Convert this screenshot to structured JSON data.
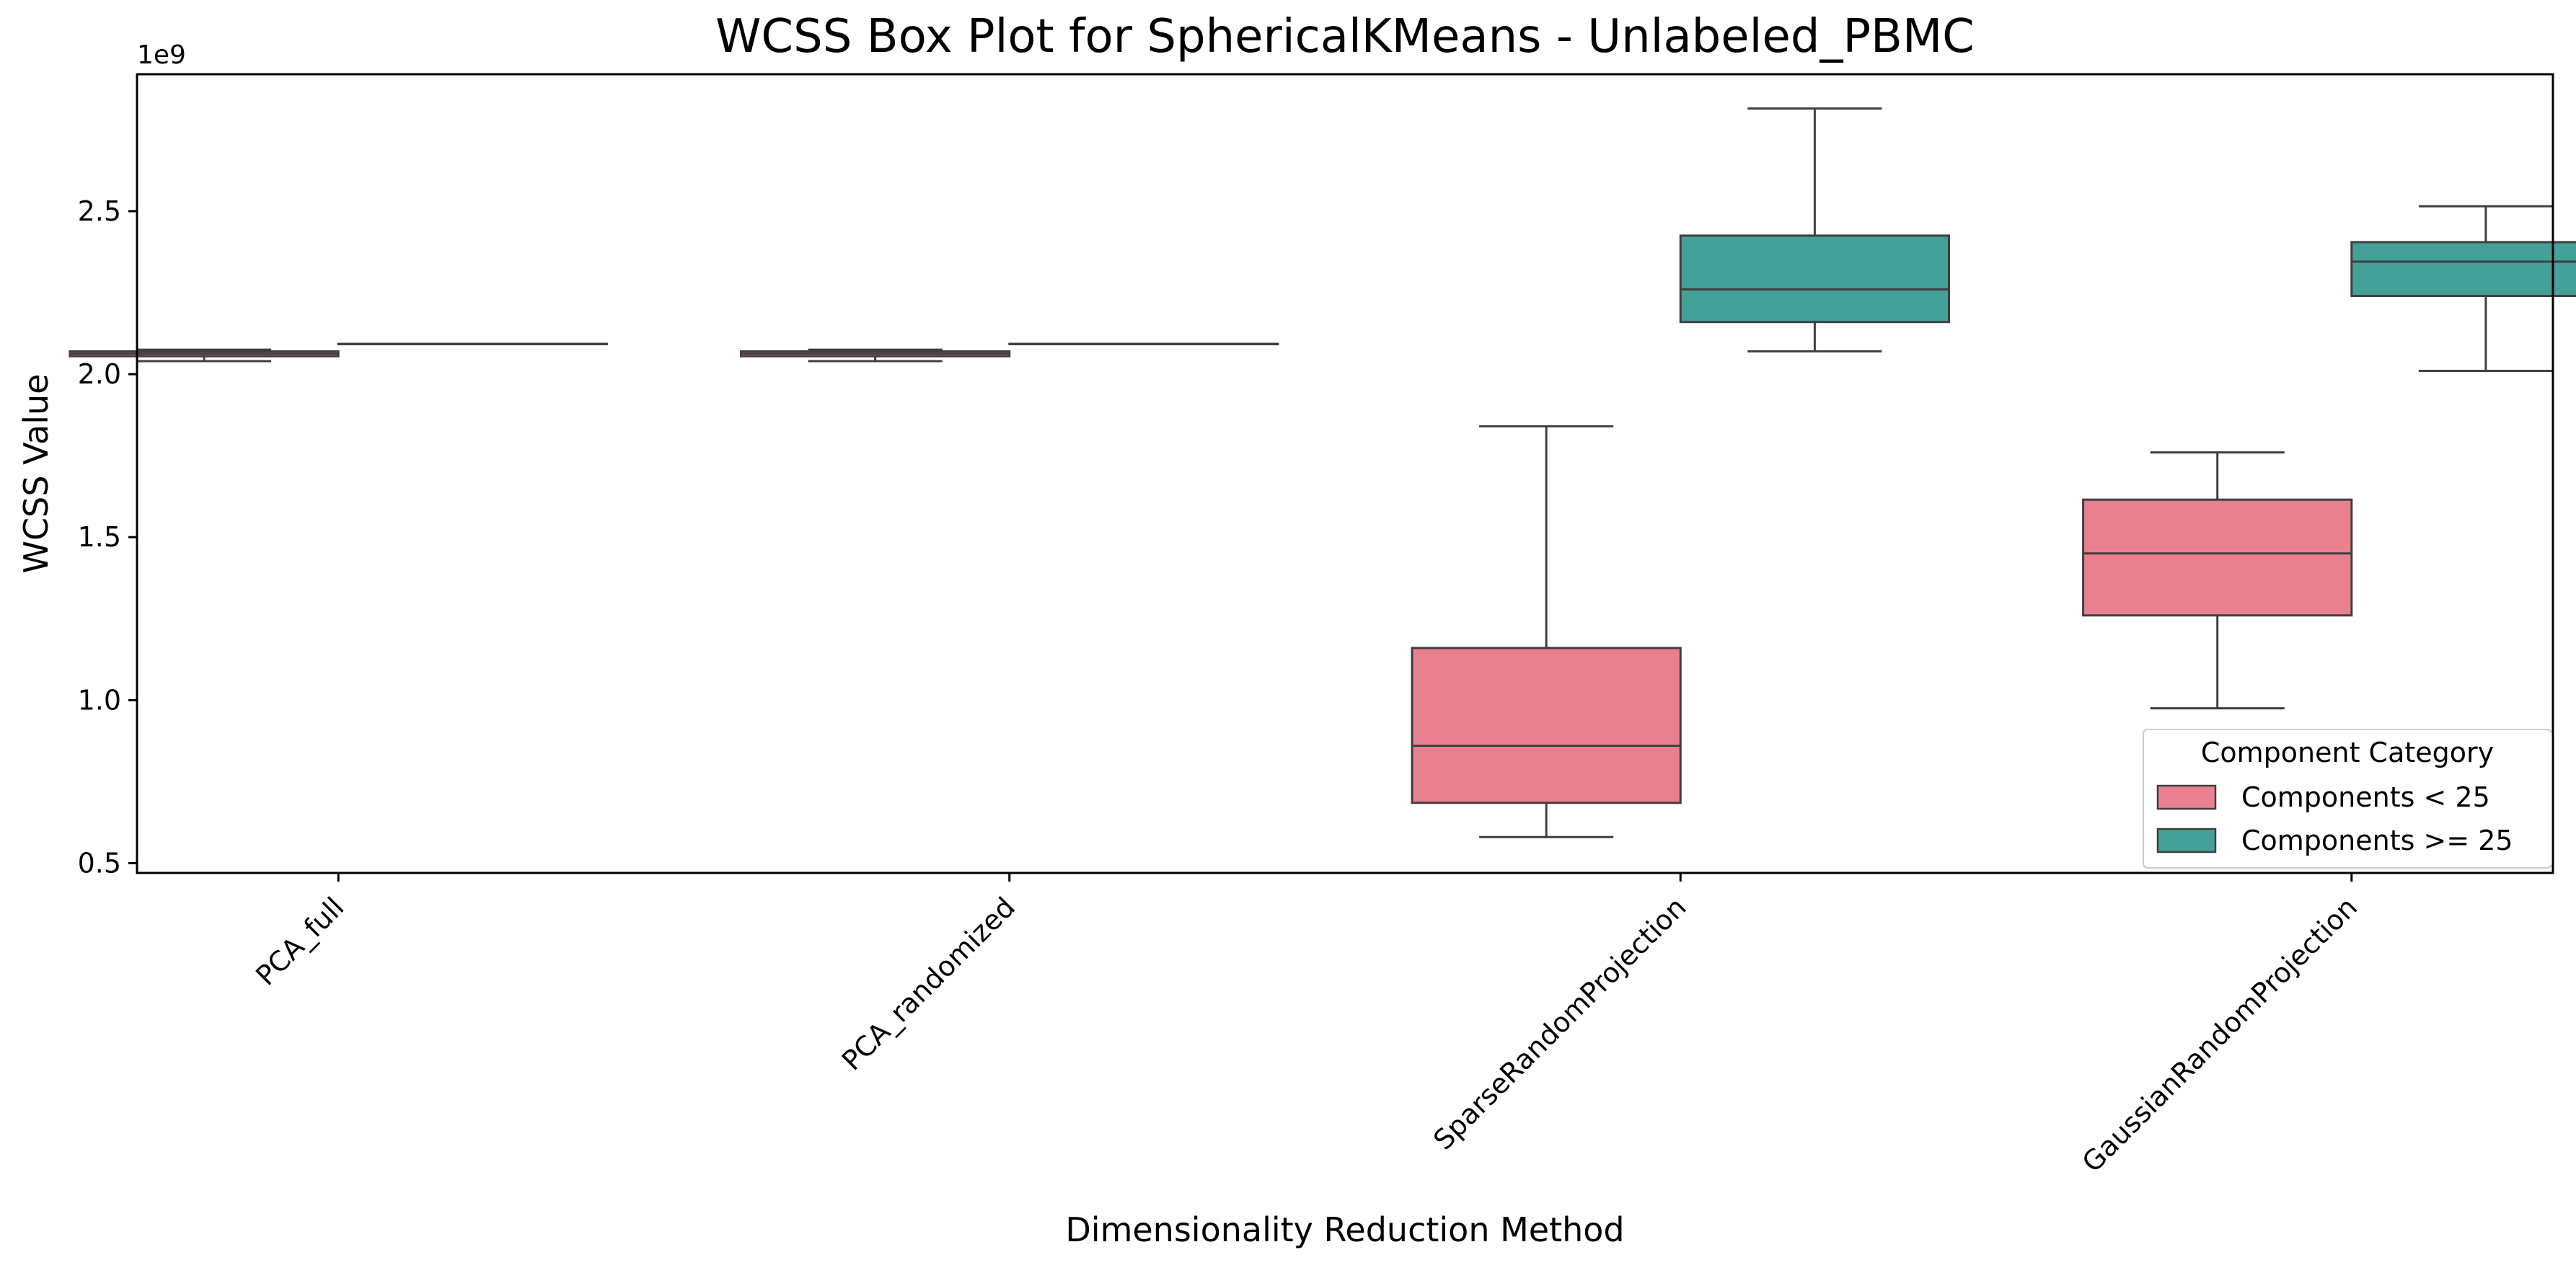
{
  "chart_data": {
    "type": "box",
    "title": "WCSS Box Plot for SphericalKMeans - Unlabeled_PBMC",
    "xlabel": "Dimensionality Reduction Method",
    "ylabel": "WCSS Value",
    "y_offset_label": "1e9",
    "ylim": [
      0.47,
      2.92
    ],
    "yticks": [
      0.5,
      1.0,
      1.5,
      2.0,
      2.5
    ],
    "ytick_labels": [
      "0.5",
      "1.0",
      "1.5",
      "2.0",
      "2.5"
    ],
    "grid": false,
    "categories": [
      "PCA_full",
      "PCA_randomized",
      "SparseRandomProjection",
      "GaussianRandomProjection"
    ],
    "legend": {
      "title": "Component Category",
      "position": "lower-right"
    },
    "series": [
      {
        "name": "Components < 25",
        "color": "#e8808f",
        "boxes": [
          {
            "whislo": 2.04,
            "q1": 2.055,
            "med": 2.063,
            "q3": 2.07,
            "whishi": 2.075
          },
          {
            "whislo": 2.04,
            "q1": 2.055,
            "med": 2.063,
            "q3": 2.07,
            "whishi": 2.075
          },
          {
            "whislo": 0.58,
            "q1": 0.685,
            "med": 0.86,
            "q3": 1.16,
            "whishi": 1.84
          },
          {
            "whislo": 0.975,
            "q1": 1.26,
            "med": 1.45,
            "q3": 1.615,
            "whishi": 1.76
          }
        ]
      },
      {
        "name": "Components >= 25",
        "color": "#45a097",
        "boxes": [
          {
            "whislo": 2.093,
            "q1": 2.093,
            "med": 2.093,
            "q3": 2.093,
            "whishi": 2.093
          },
          {
            "whislo": 2.093,
            "q1": 2.093,
            "med": 2.093,
            "q3": 2.093,
            "whishi": 2.093
          },
          {
            "whislo": 2.07,
            "q1": 2.16,
            "med": 2.26,
            "q3": 2.425,
            "whishi": 2.815
          },
          {
            "whislo": 2.01,
            "q1": 2.24,
            "med": 2.345,
            "q3": 2.405,
            "whishi": 2.515
          }
        ]
      }
    ]
  }
}
